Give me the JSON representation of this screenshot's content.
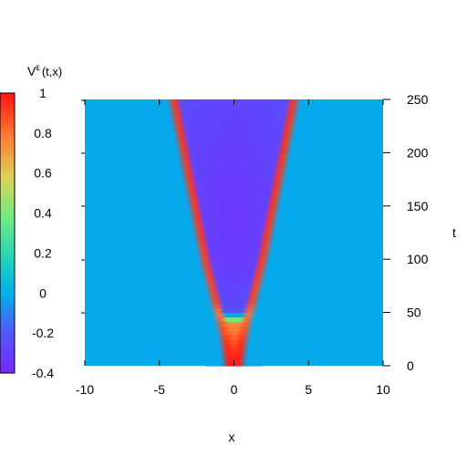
{
  "chart_data": {
    "type": "heatmap",
    "title": "",
    "colorbar_label": "V",
    "colorbar_label_superscript": "ε",
    "colorbar_label_args": "(t,x)",
    "colorbar_range": [
      -0.4,
      1
    ],
    "colorbar_ticks": [
      "1",
      "0.8",
      "0.6",
      "0.4",
      "0.2",
      "0",
      "-0.2",
      "-0.4"
    ],
    "colorbar_tick_values": [
      1,
      0.8,
      0.6,
      0.4,
      0.2,
      0,
      -0.2,
      -0.4
    ],
    "xlabel": "x",
    "ylabel": "t",
    "xlim": [
      -10,
      10
    ],
    "ylim": [
      0,
      250
    ],
    "x_ticks": [
      "-10",
      "-5",
      "0",
      "5",
      "10"
    ],
    "x_tick_values": [
      -10,
      -5,
      0,
      5,
      10
    ],
    "y_ticks": [
      "0",
      "50",
      "100",
      "150",
      "200",
      "250"
    ],
    "y_tick_values": [
      0,
      50,
      100,
      150,
      200,
      250
    ],
    "background_value": -0.02,
    "fronts": {
      "t": [
        0,
        20,
        40,
        50,
        60,
        100,
        150,
        200,
        250
      ],
      "position": [
        0.3,
        0.5,
        0.8,
        1.0,
        1.2,
        1.9,
        2.6,
        3.3,
        4.0
      ],
      "peak_value": [
        1.0,
        0.95,
        0.85,
        0.8,
        0.9,
        0.92,
        0.93,
        0.93,
        0.93
      ],
      "inner_value": [
        1.0,
        0.9,
        0.75,
        -0.2,
        -0.25,
        -0.3,
        -0.3,
        -0.28,
        -0.25
      ]
    },
    "colormap": "rainbow"
  }
}
